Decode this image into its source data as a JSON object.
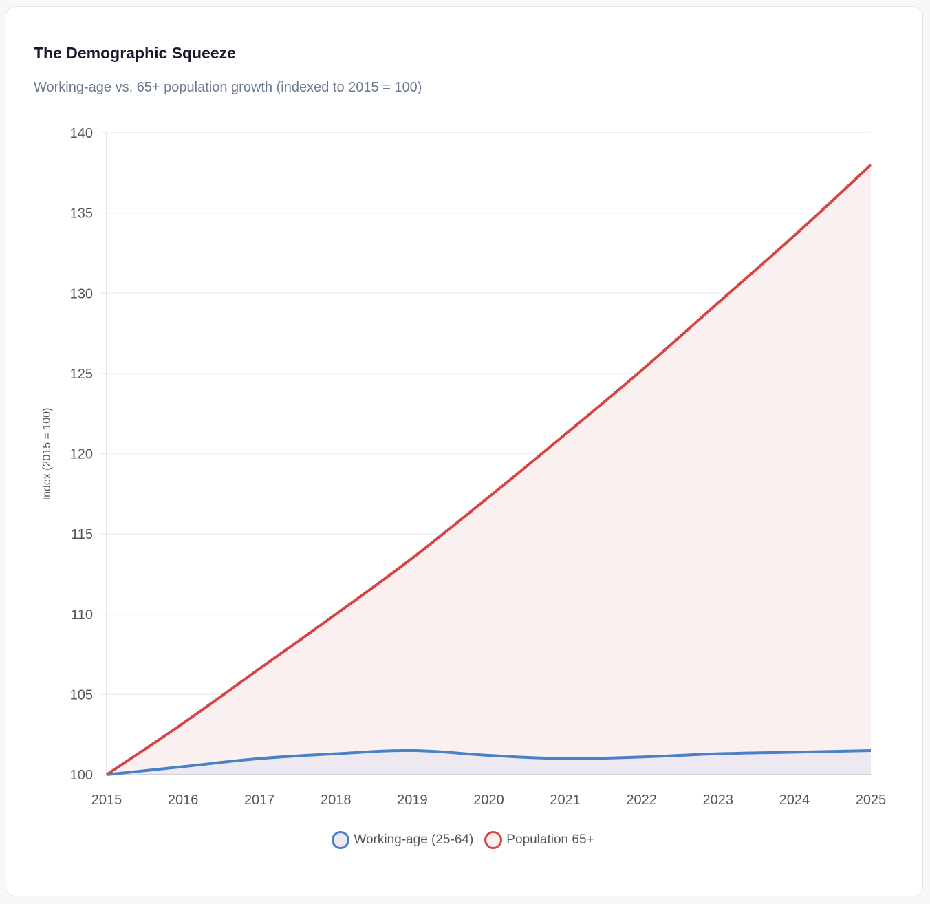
{
  "title": "The Demographic Squeeze",
  "subtitle": "Working-age vs. 65+ population growth (indexed to 2015 = 100)",
  "chart_data": {
    "type": "area",
    "x": [
      "2015",
      "2016",
      "2017",
      "2018",
      "2019",
      "2020",
      "2021",
      "2022",
      "2023",
      "2024",
      "2025"
    ],
    "ylabel": "Index (2015 = 100)",
    "xlabel": "",
    "ylim": [
      100,
      140
    ],
    "yticks": [
      "100",
      "105",
      "110",
      "115",
      "120",
      "125",
      "130",
      "135",
      "140"
    ],
    "grid": true,
    "legend_position": "bottom",
    "series": [
      {
        "name": "Working-age (25-64)",
        "color": "#4a80c8",
        "fill": "#ece8ef",
        "values": [
          100,
          100.5,
          101.0,
          101.3,
          101.5,
          101.2,
          101.0,
          101.1,
          101.3,
          101.4,
          101.5
        ]
      },
      {
        "name": "Population 65+",
        "color": "#d64545",
        "fill": "#faeeee",
        "values": [
          100,
          103.2,
          106.6,
          110.0,
          113.5,
          117.3,
          121.2,
          125.2,
          129.4,
          133.6,
          138.0
        ]
      }
    ]
  }
}
